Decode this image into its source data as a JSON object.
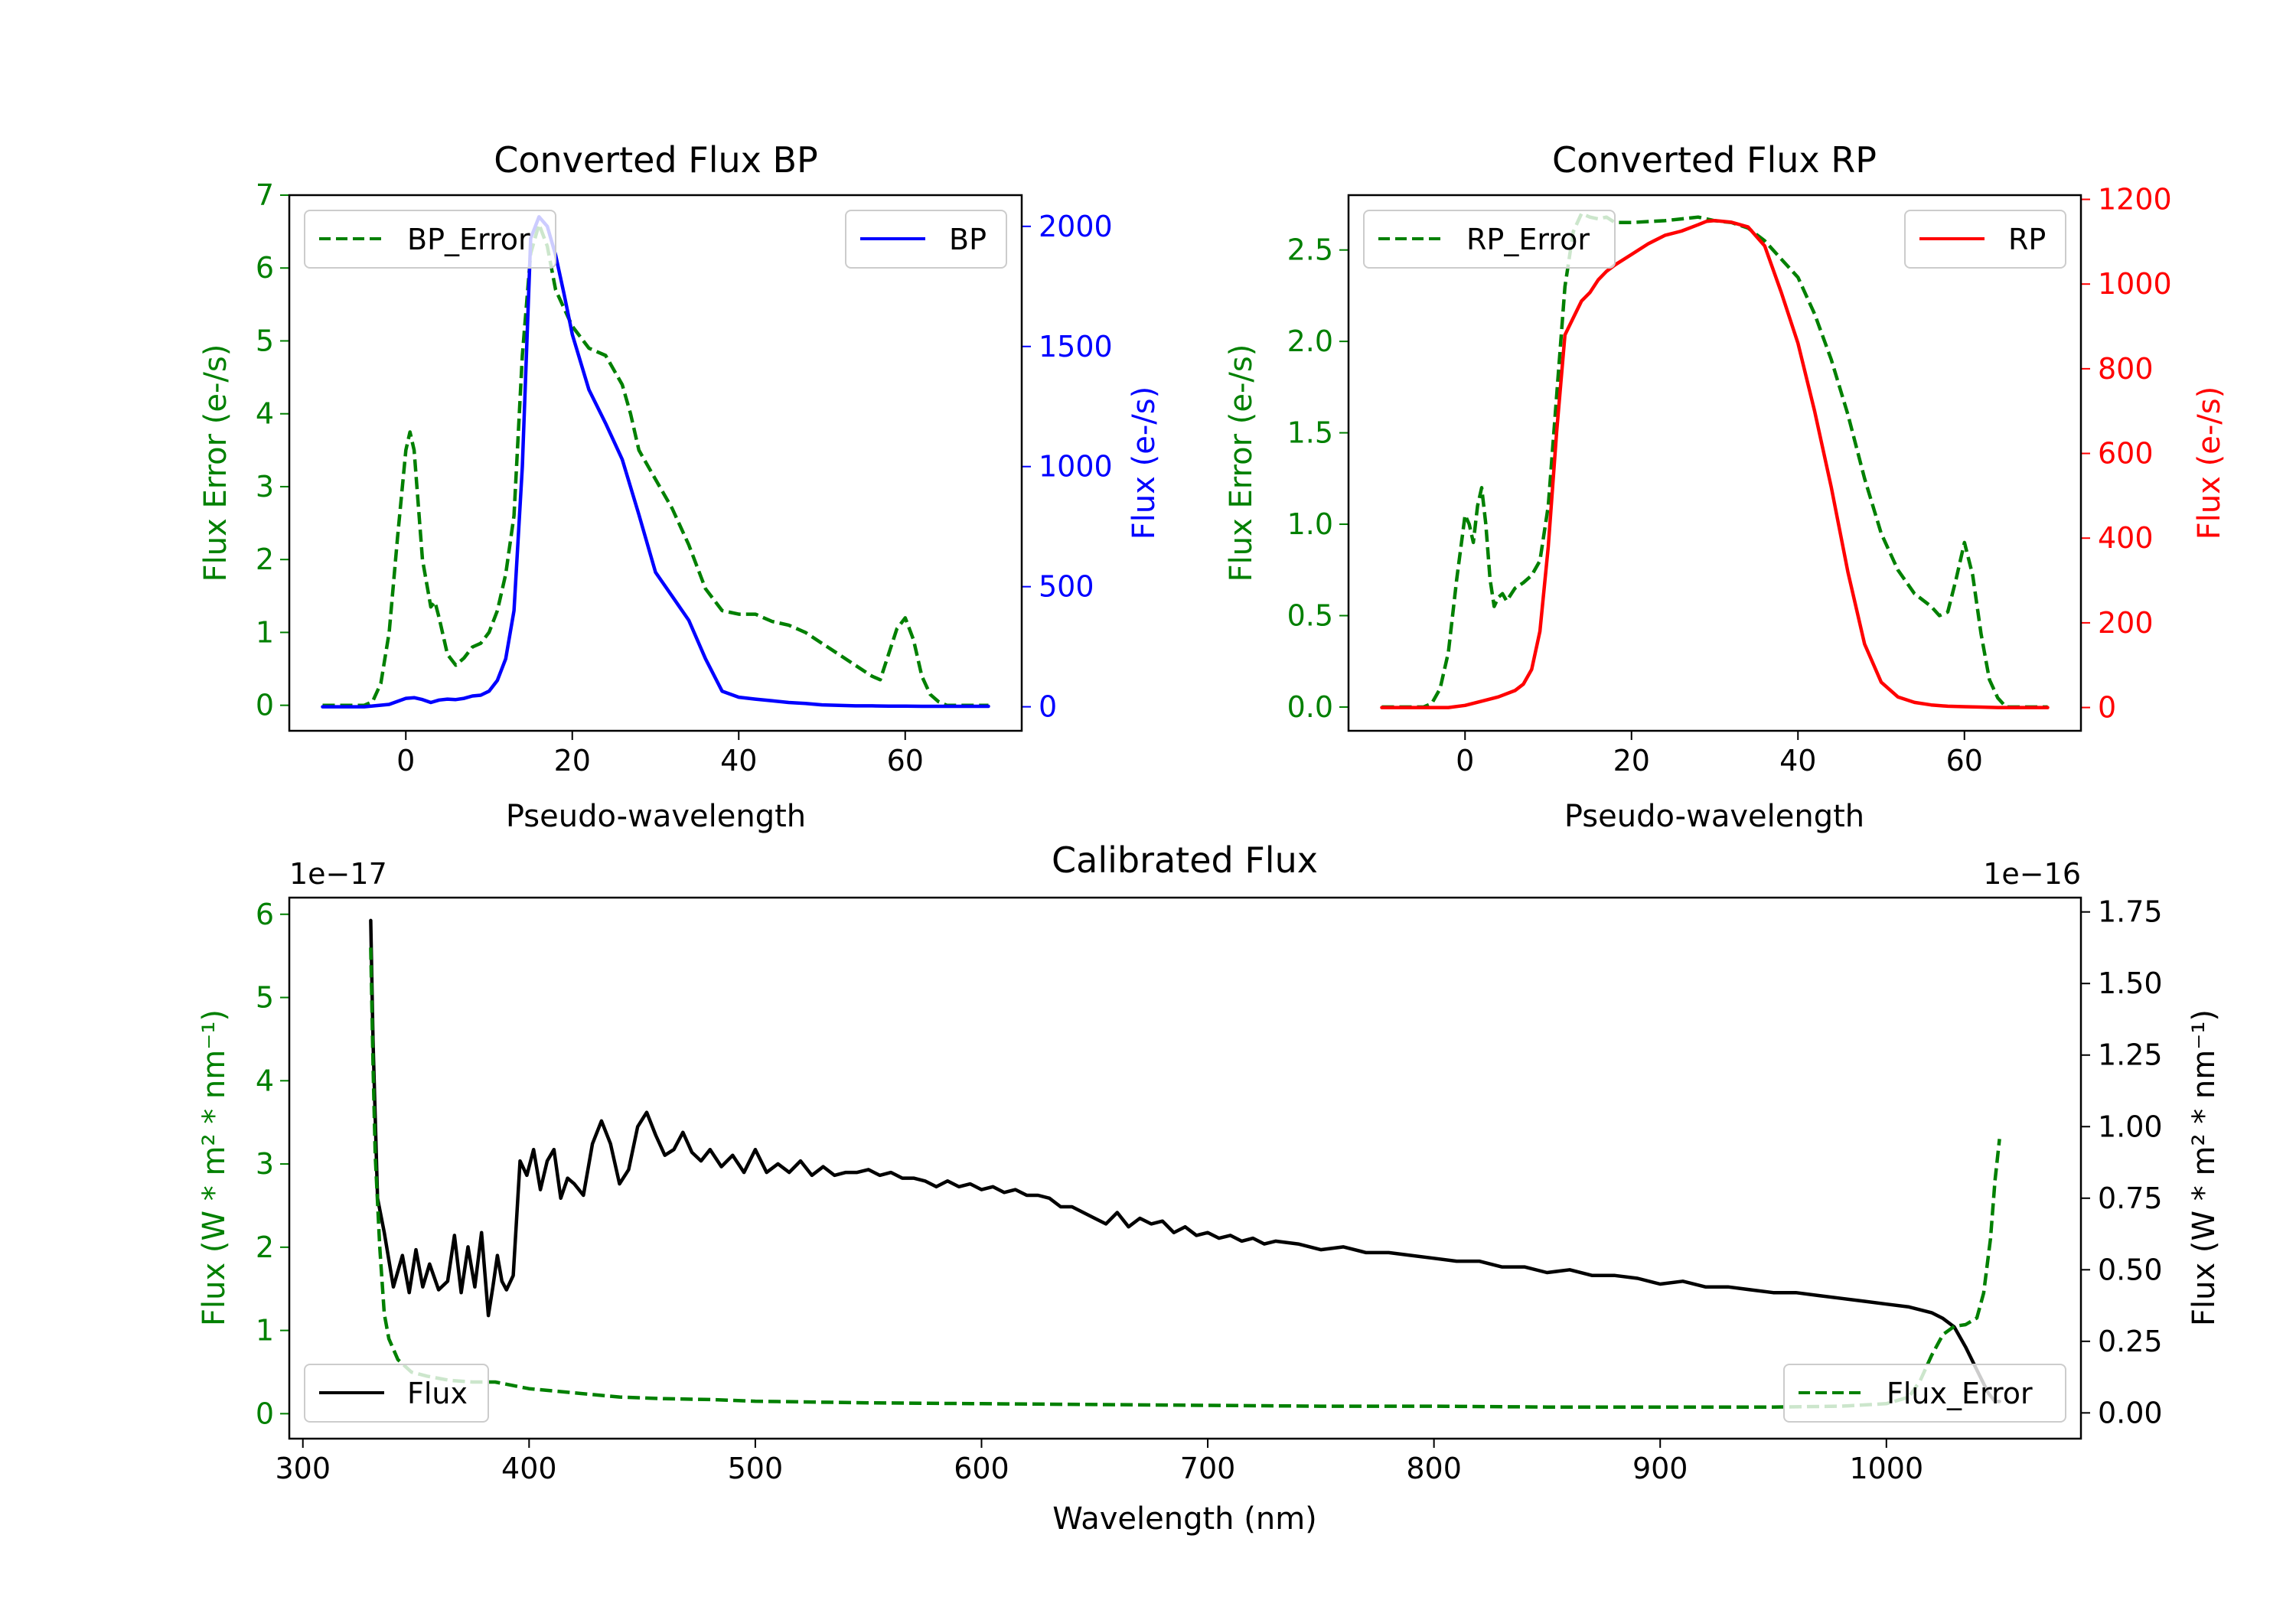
{
  "chart_data": [
    {
      "type": "line",
      "title": "Converted Flux BP",
      "xlabel": "Pseudo-wavelength",
      "xlim": [
        -14,
        74
      ],
      "xticks": [
        0,
        20,
        40,
        60
      ],
      "ylabel_left": "Flux Error (e-/s)",
      "ylabel_right": "Flux (e-/s)",
      "ylim_left": [
        -0.35,
        7.0
      ],
      "yticks_left": [
        0,
        1,
        2,
        3,
        4,
        5,
        6,
        7
      ],
      "ylim_right": [
        -100,
        2130
      ],
      "yticks_right": [
        0,
        500,
        1000,
        1500,
        2000
      ],
      "left_axis_color": "#008000",
      "right_axis_color": "#0000ff",
      "legend_left": "top-left",
      "legend_right": "top-right",
      "series": [
        {
          "name": "BP_Error",
          "axis": "left",
          "color": "#008000",
          "dash": true,
          "x": [
            -10,
            -5,
            -4,
            -3,
            -2,
            -1,
            0,
            0.5,
            1,
            2,
            3,
            3.5,
            4,
            5,
            6,
            7,
            8,
            9,
            10,
            11,
            12,
            13,
            14,
            15,
            16,
            17,
            18,
            20,
            22,
            24,
            26,
            27,
            28,
            30,
            32,
            34,
            36,
            38,
            40,
            42,
            44,
            46,
            48,
            50,
            52,
            54,
            56,
            57,
            58,
            59,
            60,
            61,
            62,
            63,
            64,
            65,
            66,
            68,
            70
          ],
          "y": [
            0,
            0,
            0.05,
            0.3,
            1.0,
            2.3,
            3.5,
            3.75,
            3.5,
            2.0,
            1.35,
            1.42,
            1.2,
            0.7,
            0.55,
            0.65,
            0.8,
            0.85,
            1.0,
            1.3,
            1.8,
            2.6,
            4.8,
            6.2,
            6.6,
            6.3,
            5.7,
            5.2,
            4.9,
            4.8,
            4.4,
            4.0,
            3.5,
            3.1,
            2.7,
            2.2,
            1.6,
            1.3,
            1.25,
            1.25,
            1.15,
            1.1,
            1.0,
            0.85,
            0.7,
            0.55,
            0.4,
            0.35,
            0.7,
            1.05,
            1.2,
            0.9,
            0.4,
            0.15,
            0.05,
            0,
            0,
            0,
            0
          ]
        },
        {
          "name": "BP",
          "axis": "right",
          "color": "#0000ff",
          "dash": false,
          "x": [
            -10,
            -5,
            -2,
            0,
            1,
            2,
            3,
            4,
            5,
            6,
            7,
            8,
            9,
            10,
            11,
            12,
            13,
            14,
            15,
            16,
            17,
            18,
            19,
            20,
            22,
            24,
            26,
            28,
            30,
            32,
            34,
            36,
            38,
            40,
            42,
            44,
            46,
            48,
            50,
            52,
            54,
            56,
            58,
            60,
            62,
            64,
            66,
            68,
            70
          ],
          "y": [
            0,
            0,
            10,
            35,
            38,
            30,
            18,
            28,
            32,
            30,
            35,
            45,
            48,
            65,
            110,
            200,
            400,
            1000,
            1950,
            2040,
            2000,
            1880,
            1720,
            1550,
            1320,
            1180,
            1030,
            800,
            560,
            460,
            360,
            200,
            65,
            40,
            32,
            25,
            18,
            14,
            8,
            6,
            4,
            4,
            3,
            3,
            2,
            2,
            2,
            2,
            2
          ]
        }
      ]
    },
    {
      "type": "line",
      "title": "Converted Flux RP",
      "xlabel": "Pseudo-wavelength",
      "xlim": [
        -14,
        74
      ],
      "xticks": [
        0,
        20,
        40,
        60
      ],
      "ylabel_left": "Flux Error (e-/s)",
      "ylabel_right": "Flux (e-/s)",
      "ylim_left": [
        -0.13,
        2.8
      ],
      "yticks_left": [
        "0.0",
        "0.5",
        "1.0",
        "1.5",
        "2.0",
        "2.5"
      ],
      "ylim_right": [
        -55,
        1210
      ],
      "yticks_right": [
        0,
        200,
        400,
        600,
        800,
        1000,
        1200
      ],
      "left_axis_color": "#008000",
      "right_axis_color": "#ff0000",
      "legend_left": "top-left",
      "legend_right": "top-right",
      "series": [
        {
          "name": "RP_Error",
          "axis": "left",
          "color": "#008000",
          "dash": true,
          "x": [
            -10,
            -5,
            -4,
            -3,
            -2,
            -1,
            0,
            0.5,
            1,
            1.5,
            2,
            2.5,
            3,
            3.5,
            4,
            4.5,
            5,
            6,
            7,
            8,
            9,
            10,
            11,
            12,
            13,
            14,
            15,
            16,
            17,
            18,
            20,
            24,
            28,
            30,
            32,
            34,
            36,
            38,
            40,
            42,
            44,
            46,
            48,
            50,
            52,
            54,
            56,
            57,
            58,
            59,
            60,
            61,
            62,
            63,
            64,
            65,
            66,
            68,
            70
          ],
          "y": [
            0,
            0,
            0.02,
            0.1,
            0.3,
            0.7,
            1.05,
            1.0,
            0.9,
            1.1,
            1.2,
            1.0,
            0.7,
            0.55,
            0.6,
            0.62,
            0.58,
            0.65,
            0.68,
            0.72,
            0.8,
            1.1,
            1.7,
            2.3,
            2.6,
            2.7,
            2.68,
            2.67,
            2.68,
            2.65,
            2.65,
            2.66,
            2.68,
            2.66,
            2.65,
            2.62,
            2.55,
            2.45,
            2.35,
            2.15,
            1.9,
            1.6,
            1.25,
            0.95,
            0.75,
            0.62,
            0.55,
            0.5,
            0.52,
            0.7,
            0.9,
            0.72,
            0.4,
            0.15,
            0.05,
            0,
            0,
            0,
            0
          ]
        },
        {
          "name": "RP",
          "axis": "right",
          "color": "#ff0000",
          "dash": false,
          "x": [
            -10,
            -5,
            -2,
            0,
            2,
            4,
            6,
            7,
            8,
            9,
            10,
            11,
            12,
            13,
            14,
            15,
            16,
            17,
            18,
            20,
            22,
            24,
            26,
            28,
            29,
            30,
            32,
            34,
            36,
            38,
            40,
            42,
            44,
            46,
            48,
            50,
            52,
            54,
            56,
            58,
            60,
            62,
            64,
            66,
            68,
            70
          ],
          "y": [
            0,
            0,
            0,
            5,
            15,
            25,
            40,
            55,
            90,
            180,
            380,
            650,
            880,
            920,
            960,
            980,
            1010,
            1030,
            1045,
            1070,
            1095,
            1115,
            1125,
            1140,
            1148,
            1150,
            1146,
            1135,
            1090,
            980,
            860,
            700,
            520,
            320,
            150,
            60,
            25,
            12,
            6,
            3,
            2,
            1,
            0,
            0,
            0,
            0
          ]
        }
      ]
    },
    {
      "type": "line",
      "title": "Calibrated Flux",
      "xlabel": "Wavelength (nm)",
      "xlim": [
        294,
        1086
      ],
      "xticks": [
        300,
        400,
        500,
        600,
        700,
        800,
        900,
        1000
      ],
      "ylabel_left": "Flux (W * m² * nm⁻¹)",
      "ylabel_right": "Flux (W * m² * nm⁻¹)",
      "offset_left": "1e−17",
      "offset_right": "1e−16",
      "ylim_left": [
        -0.3,
        6.2
      ],
      "yticks_left": [
        0,
        1,
        2,
        3,
        4,
        5,
        6
      ],
      "ylim_right": [
        -0.09,
        1.8
      ],
      "yticks_right": [
        "0.00",
        "0.25",
        "0.50",
        "0.75",
        "1.00",
        "1.25",
        "1.50",
        "1.75"
      ],
      "left_axis_color": "#008000",
      "right_axis_color": "#000000",
      "legend_left": "bottom-left",
      "legend_right": "bottom-right",
      "series": [
        {
          "name": "Flux",
          "axis": "right",
          "color": "#000000",
          "dash": false,
          "x": [
            330,
            331,
            333,
            336,
            340,
            344,
            347,
            350,
            353,
            356,
            360,
            364,
            367,
            370,
            373,
            376,
            379,
            382,
            384,
            386,
            388,
            390,
            393,
            396,
            399,
            402,
            405,
            408,
            411,
            414,
            417,
            420,
            424,
            428,
            432,
            436,
            440,
            444,
            448,
            452,
            456,
            460,
            464,
            468,
            472,
            476,
            480,
            485,
            490,
            495,
            500,
            505,
            510,
            515,
            520,
            525,
            530,
            535,
            540,
            545,
            550,
            555,
            560,
            565,
            570,
            575,
            580,
            585,
            590,
            595,
            600,
            605,
            610,
            615,
            620,
            625,
            630,
            635,
            640,
            645,
            650,
            655,
            660,
            665,
            670,
            675,
            680,
            685,
            690,
            695,
            700,
            705,
            710,
            715,
            720,
            725,
            730,
            740,
            750,
            760,
            770,
            780,
            790,
            800,
            810,
            820,
            830,
            840,
            850,
            860,
            870,
            880,
            890,
            900,
            910,
            920,
            930,
            940,
            950,
            960,
            970,
            980,
            990,
            1000,
            1010,
            1020,
            1025,
            1030,
            1035,
            1040,
            1045,
            1048,
            1050
          ],
          "y": [
            1.72,
            1.3,
            0.75,
            0.63,
            0.44,
            0.55,
            0.42,
            0.57,
            0.44,
            0.52,
            0.43,
            0.46,
            0.62,
            0.42,
            0.58,
            0.44,
            0.63,
            0.34,
            0.44,
            0.55,
            0.46,
            0.43,
            0.48,
            0.88,
            0.83,
            0.92,
            0.78,
            0.88,
            0.92,
            0.75,
            0.82,
            0.8,
            0.76,
            0.94,
            1.02,
            0.94,
            0.8,
            0.85,
            1.0,
            1.05,
            0.97,
            0.9,
            0.92,
            0.98,
            0.91,
            0.88,
            0.92,
            0.86,
            0.9,
            0.84,
            0.92,
            0.84,
            0.87,
            0.84,
            0.88,
            0.83,
            0.86,
            0.83,
            0.84,
            0.84,
            0.85,
            0.83,
            0.84,
            0.82,
            0.82,
            0.81,
            0.79,
            0.81,
            0.79,
            0.8,
            0.78,
            0.79,
            0.77,
            0.78,
            0.76,
            0.76,
            0.75,
            0.72,
            0.72,
            0.7,
            0.68,
            0.66,
            0.7,
            0.65,
            0.68,
            0.66,
            0.67,
            0.63,
            0.65,
            0.62,
            0.63,
            0.61,
            0.62,
            0.6,
            0.61,
            0.59,
            0.6,
            0.59,
            0.57,
            0.58,
            0.56,
            0.56,
            0.55,
            0.54,
            0.53,
            0.53,
            0.51,
            0.51,
            0.49,
            0.5,
            0.48,
            0.48,
            0.47,
            0.45,
            0.46,
            0.44,
            0.44,
            0.43,
            0.42,
            0.42,
            0.41,
            0.4,
            0.39,
            0.38,
            0.37,
            0.35,
            0.33,
            0.3,
            0.23,
            0.15,
            0.07,
            0.04,
            0.04
          ]
        },
        {
          "name": "Flux_Error",
          "axis": "left",
          "color": "#008000",
          "dash": true,
          "x": [
            330,
            331,
            332,
            334,
            336,
            338,
            342,
            348,
            355,
            365,
            375,
            385,
            400,
            420,
            440,
            460,
            480,
            500,
            550,
            600,
            650,
            700,
            750,
            800,
            850,
            900,
            950,
            980,
            1000,
            1010,
            1015,
            1020,
            1025,
            1030,
            1035,
            1040,
            1043,
            1046,
            1048,
            1050
          ],
          "y": [
            5.6,
            4.2,
            3.1,
            2.0,
            1.2,
            0.9,
            0.65,
            0.5,
            0.45,
            0.4,
            0.38,
            0.38,
            0.3,
            0.25,
            0.2,
            0.18,
            0.17,
            0.15,
            0.13,
            0.12,
            0.11,
            0.1,
            0.09,
            0.09,
            0.08,
            0.08,
            0.08,
            0.09,
            0.12,
            0.2,
            0.4,
            0.7,
            0.95,
            1.05,
            1.07,
            1.15,
            1.45,
            2.1,
            2.8,
            3.3
          ]
        }
      ]
    }
  ]
}
